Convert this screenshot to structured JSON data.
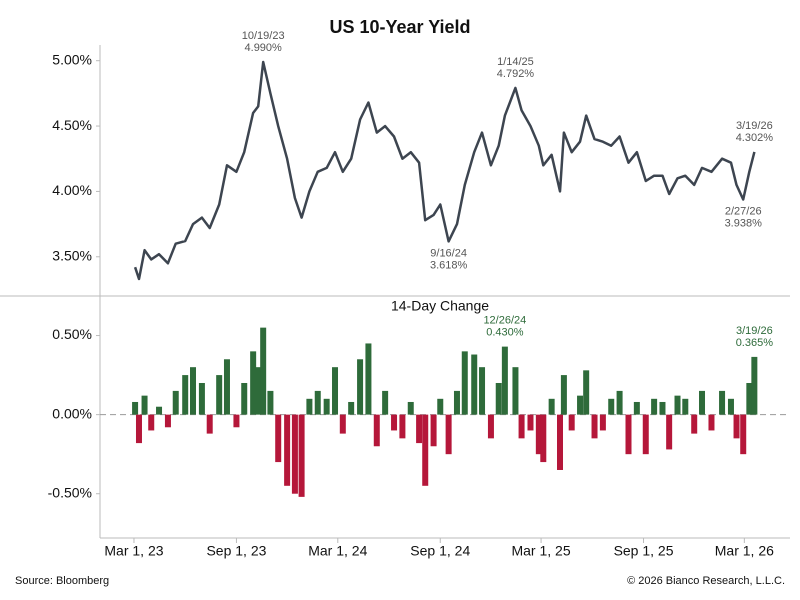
{
  "title": "US 10-Year Yield",
  "source": "Source: Bloomberg",
  "credit": "© 2026 Bianco Research, L.L.C.",
  "chart_data": [
    {
      "type": "line",
      "color": "#3d4550",
      "xlim": [
        "2022-12-30",
        "2026-05-22"
      ],
      "ylim": [
        3.2,
        5.12
      ],
      "yticks": [
        {
          "value": 5,
          "label": "5.00%"
        },
        {
          "value": 4.5,
          "label": "4.50%"
        },
        {
          "value": 4,
          "label": "4.00%"
        },
        {
          "value": 3.5,
          "label": "3.50%"
        }
      ],
      "x": [
        "2023-03-03",
        "2023-03-10",
        "2023-03-20",
        "2023-04-01",
        "2023-04-15",
        "2023-05-01",
        "2023-05-15",
        "2023-06-01",
        "2023-06-15",
        "2023-07-01",
        "2023-07-15",
        "2023-08-01",
        "2023-08-15",
        "2023-09-01",
        "2023-09-15",
        "2023-10-01",
        "2023-10-10",
        "2023-10-19",
        "2023-11-01",
        "2023-11-15",
        "2023-12-01",
        "2023-12-15",
        "2023-12-27",
        "2024-01-10",
        "2024-01-25",
        "2024-02-10",
        "2024-02-25",
        "2024-03-10",
        "2024-03-25",
        "2024-04-10",
        "2024-04-25",
        "2024-05-10",
        "2024-05-25",
        "2024-06-10",
        "2024-06-25",
        "2024-07-10",
        "2024-07-25",
        "2024-08-05",
        "2024-08-20",
        "2024-09-01",
        "2024-09-16",
        "2024-10-01",
        "2024-10-15",
        "2024-11-01",
        "2024-11-15",
        "2024-12-01",
        "2024-12-15",
        "2024-12-26",
        "2025-01-14",
        "2025-01-25",
        "2025-02-10",
        "2025-02-25",
        "2025-03-05",
        "2025-03-20",
        "2025-04-04",
        "2025-04-11",
        "2025-04-25",
        "2025-05-10",
        "2025-05-21",
        "2025-06-05",
        "2025-06-20",
        "2025-07-05",
        "2025-07-20",
        "2025-08-05",
        "2025-08-20",
        "2025-09-05",
        "2025-09-20",
        "2025-10-05",
        "2025-10-17",
        "2025-11-01",
        "2025-11-15",
        "2025-12-01",
        "2025-12-15",
        "2026-01-01",
        "2026-01-20",
        "2026-02-05",
        "2026-02-15",
        "2026-02-27",
        "2026-03-10",
        "2026-03-19"
      ],
      "values": [
        3.42,
        3.33,
        3.55,
        3.48,
        3.52,
        3.45,
        3.6,
        3.62,
        3.75,
        3.8,
        3.72,
        3.9,
        4.2,
        4.15,
        4.3,
        4.6,
        4.65,
        4.99,
        4.75,
        4.5,
        4.25,
        3.95,
        3.8,
        4.0,
        4.15,
        4.18,
        4.3,
        4.15,
        4.25,
        4.55,
        4.68,
        4.45,
        4.5,
        4.42,
        4.25,
        4.3,
        4.22,
        3.78,
        3.82,
        3.9,
        3.618,
        3.75,
        4.05,
        4.3,
        4.45,
        4.2,
        4.35,
        4.58,
        4.792,
        4.62,
        4.5,
        4.35,
        4.2,
        4.28,
        4.0,
        4.45,
        4.3,
        4.38,
        4.58,
        4.4,
        4.38,
        4.35,
        4.42,
        4.22,
        4.3,
        4.08,
        4.12,
        4.12,
        3.98,
        4.1,
        4.12,
        4.05,
        4.18,
        4.15,
        4.25,
        4.22,
        4.05,
        3.938,
        4.15,
        4.302
      ],
      "annotations": [
        {
          "x": "2023-10-19",
          "y": 4.99,
          "date_label": "10/19/23",
          "value_label": "4.990%",
          "position": "above",
          "color": "#555555"
        },
        {
          "x": "2024-09-16",
          "y": 3.618,
          "date_label": "9/16/24",
          "value_label": "3.618%",
          "position": "below",
          "color": "#555555"
        },
        {
          "x": "2025-01-14",
          "y": 4.792,
          "date_label": "1/14/25",
          "value_label": "4.792%",
          "position": "above",
          "color": "#555555"
        },
        {
          "x": "2026-02-27",
          "y": 3.938,
          "date_label": "2/27/26",
          "value_label": "3.938%",
          "position": "below",
          "color": "#555555"
        },
        {
          "x": "2026-03-19",
          "y": 4.302,
          "date_label": "3/19/26",
          "value_label": "4.302%",
          "position": "above",
          "color": "#555555"
        }
      ]
    },
    {
      "type": "bar",
      "subtitle": "14-Day Change",
      "positive_color": "#2e6b3a",
      "negative_color": "#b5173a",
      "zero_line": true,
      "xlim": [
        "2022-12-30",
        "2026-05-22"
      ],
      "ylim": [
        -0.78,
        0.75
      ],
      "yticks": [
        {
          "value": 0.5,
          "label": "0.50%"
        },
        {
          "value": 0,
          "label": "0.00%"
        },
        {
          "value": -0.5,
          "label": "-0.50%"
        }
      ],
      "xticks": [
        {
          "value": "2023-03-01",
          "label": "Mar 1, 23"
        },
        {
          "value": "2023-09-01",
          "label": "Sep 1, 23"
        },
        {
          "value": "2024-03-01",
          "label": "Mar 1, 24"
        },
        {
          "value": "2024-09-01",
          "label": "Sep 1, 24"
        },
        {
          "value": "2025-03-01",
          "label": "Mar 1, 25"
        },
        {
          "value": "2025-09-01",
          "label": "Sep 1, 25"
        },
        {
          "value": "2026-03-01",
          "label": "Mar 1, 26"
        }
      ],
      "x": [
        "2023-03-03",
        "2023-03-10",
        "2023-03-20",
        "2023-04-01",
        "2023-04-15",
        "2023-05-01",
        "2023-05-15",
        "2023-06-01",
        "2023-06-15",
        "2023-07-01",
        "2023-07-15",
        "2023-08-01",
        "2023-08-15",
        "2023-09-01",
        "2023-09-15",
        "2023-10-01",
        "2023-10-10",
        "2023-10-19",
        "2023-11-01",
        "2023-11-15",
        "2023-12-01",
        "2023-12-15",
        "2023-12-27",
        "2024-01-10",
        "2024-01-25",
        "2024-02-10",
        "2024-02-25",
        "2024-03-10",
        "2024-03-25",
        "2024-04-10",
        "2024-04-25",
        "2024-05-10",
        "2024-05-25",
        "2024-06-10",
        "2024-06-25",
        "2024-07-10",
        "2024-07-25",
        "2024-08-05",
        "2024-08-20",
        "2024-09-01",
        "2024-09-16",
        "2024-10-01",
        "2024-10-15",
        "2024-11-01",
        "2024-11-15",
        "2024-12-01",
        "2024-12-15",
        "2024-12-26",
        "2025-01-14",
        "2025-01-25",
        "2025-02-10",
        "2025-02-25",
        "2025-03-05",
        "2025-03-20",
        "2025-04-04",
        "2025-04-11",
        "2025-04-25",
        "2025-05-10",
        "2025-05-21",
        "2025-06-05",
        "2025-06-20",
        "2025-07-05",
        "2025-07-20",
        "2025-08-05",
        "2025-08-20",
        "2025-09-05",
        "2025-09-20",
        "2025-10-05",
        "2025-10-17",
        "2025-11-01",
        "2025-11-15",
        "2025-12-01",
        "2025-12-15",
        "2026-01-01",
        "2026-01-20",
        "2026-02-05",
        "2026-02-15",
        "2026-02-27",
        "2026-03-10",
        "2026-03-19"
      ],
      "values": [
        0.08,
        -0.18,
        0.12,
        -0.1,
        0.05,
        -0.08,
        0.15,
        0.25,
        0.3,
        0.2,
        -0.12,
        0.25,
        0.35,
        -0.08,
        0.2,
        0.4,
        0.3,
        0.55,
        0.15,
        -0.3,
        -0.45,
        -0.5,
        -0.52,
        0.1,
        0.15,
        0.1,
        0.3,
        -0.12,
        0.08,
        0.35,
        0.45,
        -0.2,
        0.15,
        -0.1,
        -0.15,
        0.08,
        -0.18,
        -0.45,
        -0.2,
        0.1,
        -0.25,
        0.15,
        0.4,
        0.38,
        0.3,
        -0.15,
        0.2,
        0.43,
        0.3,
        -0.15,
        -0.1,
        -0.25,
        -0.3,
        0.1,
        -0.35,
        0.25,
        -0.1,
        0.12,
        0.28,
        -0.15,
        -0.1,
        0.1,
        0.15,
        -0.25,
        0.08,
        -0.25,
        0.1,
        0.08,
        -0.22,
        0.12,
        0.1,
        -0.12,
        0.15,
        -0.1,
        0.15,
        0.1,
        -0.15,
        -0.25,
        0.2,
        0.365
      ],
      "annotations": [
        {
          "x": "2024-12-26",
          "y": 0.43,
          "date_label": "12/26/24",
          "value_label": "0.430%",
          "position": "above",
          "color": "#2e6b3a"
        },
        {
          "x": "2026-03-19",
          "y": 0.365,
          "date_label": "3/19/26",
          "value_label": "0.365%",
          "position": "above",
          "color": "#2e6b3a"
        }
      ]
    }
  ]
}
